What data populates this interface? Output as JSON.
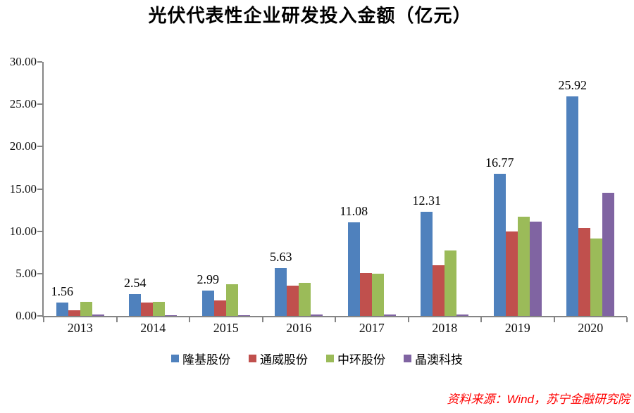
{
  "title": "光伏代表性企业研发投入金额（亿元）",
  "source_note": "资料来源：Wind，苏宁金融研究院",
  "chart_data": {
    "type": "bar",
    "title": "光伏代表性企业研发投入金额（亿元）",
    "categories": [
      "2013",
      "2014",
      "2015",
      "2016",
      "2017",
      "2018",
      "2019",
      "2020"
    ],
    "series": [
      {
        "name": "隆基股份",
        "color": "#4F81BD",
        "values": [
          1.56,
          2.54,
          2.99,
          5.63,
          11.08,
          12.31,
          16.77,
          25.92
        ]
      },
      {
        "name": "通威股份",
        "color": "#C0504D",
        "values": [
          0.7,
          1.55,
          1.85,
          3.55,
          5.05,
          6.0,
          10.0,
          10.4
        ]
      },
      {
        "name": "中环股份",
        "color": "#9BBB59",
        "values": [
          1.7,
          1.7,
          3.7,
          3.9,
          4.95,
          7.75,
          11.7,
          9.15
        ]
      },
      {
        "name": "晶澳科技",
        "color": "#8064A2",
        "values": [
          0.2,
          0.1,
          0.1,
          0.2,
          0.15,
          0.2,
          11.15,
          14.55
        ]
      }
    ],
    "bar_labels": [
      "1.56",
      "2.54",
      "2.99",
      "5.63",
      "11.08",
      "12.31",
      "16.77",
      "25.92"
    ],
    "bar_labels_series": "隆基股份",
    "ylim": [
      0,
      30
    ],
    "ytick_step": 5,
    "ytick_labels": [
      "0.00",
      "5.00",
      "10.00",
      "15.00",
      "20.00",
      "25.00",
      "30.00"
    ],
    "grid": false,
    "legend_position": "bottom",
    "axis_color": "#858585"
  }
}
